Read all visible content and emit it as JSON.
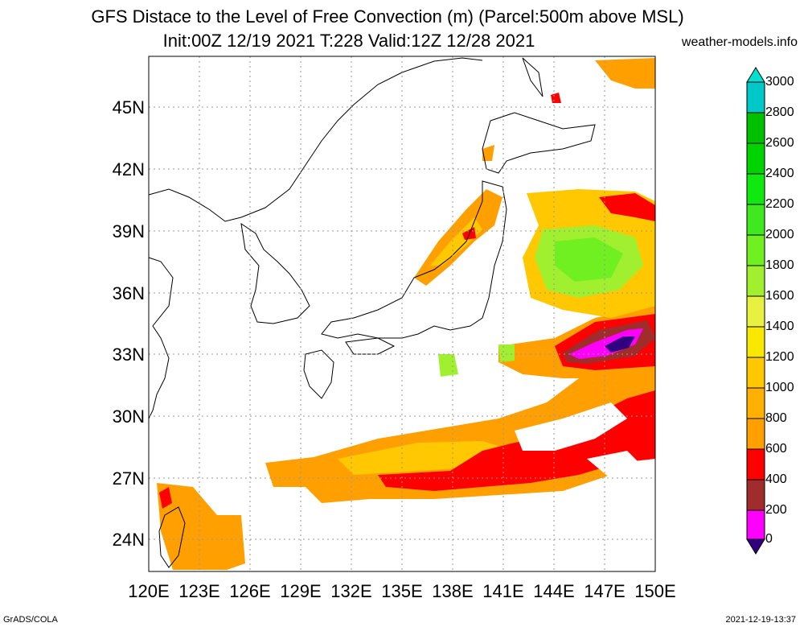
{
  "header": {
    "title_line1": "GFS Distace to the Level of Free Convection (m) (Parcel:500m above MSL)",
    "title_line2": "Init:00Z 12/19 2021 T:228 Valid:12Z 12/28 2021",
    "site": "weather-models.info"
  },
  "axes": {
    "lat_labels": [
      "45N",
      "42N",
      "39N",
      "36N",
      "33N",
      "30N",
      "27N",
      "24N"
    ],
    "lon_labels": [
      "120E",
      "123E",
      "126E",
      "129E",
      "132E",
      "135E",
      "138E",
      "141E",
      "144E",
      "147E",
      "150E"
    ]
  },
  "colorbar": {
    "labels": [
      "3000",
      "2800",
      "2600",
      "2400",
      "2200",
      "2000",
      "1800",
      "1600",
      "1400",
      "1200",
      "1000",
      "800",
      "600",
      "400",
      "200",
      "0"
    ],
    "colors": [
      "#00e0d0",
      "#00c000",
      "#00d400",
      "#10e810",
      "#40e820",
      "#70f020",
      "#a0f030",
      "#c8f040",
      "#e8f040",
      "#f8e800",
      "#ffc800",
      "#ffa000",
      "#ff0000",
      "#a02c2c",
      "#ff00ff",
      "#300080"
    ]
  },
  "footer": {
    "left": "GrADS/COLA",
    "right": "2021-12-19-13:37"
  },
  "legend_units": "m"
}
